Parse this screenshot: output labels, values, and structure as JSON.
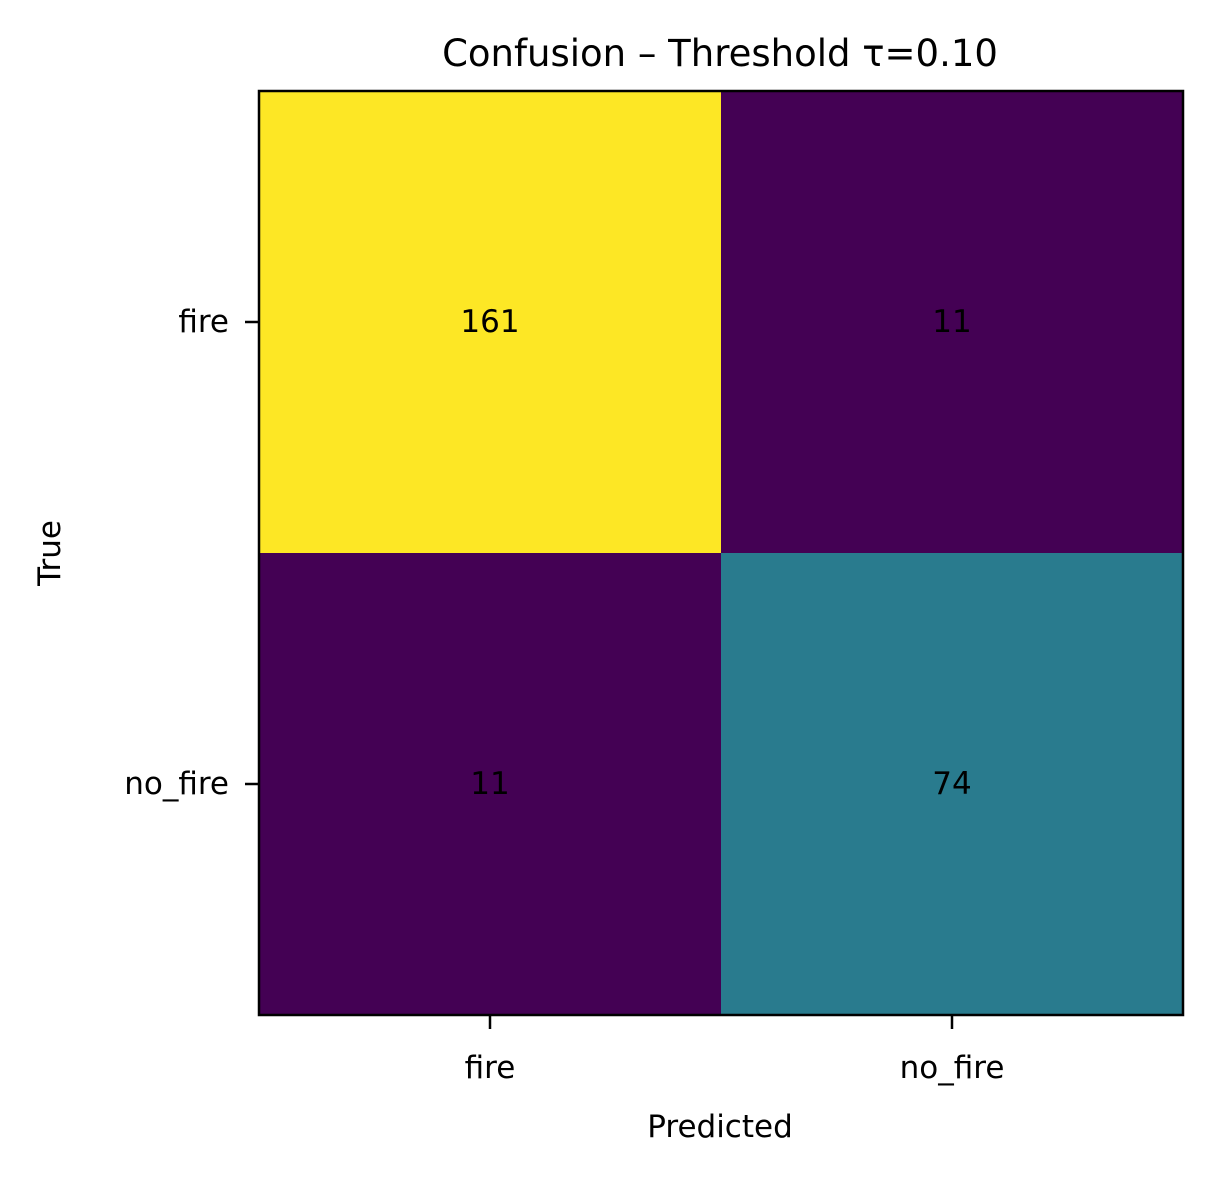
{
  "chart_data": {
    "type": "heatmap",
    "title": "Confusion – Threshold τ=0.10",
    "xlabel": "Predicted",
    "ylabel": "True",
    "x_categories": [
      "fire",
      "no_fire"
    ],
    "y_categories": [
      "fire",
      "no_fire"
    ],
    "values": [
      [
        161,
        11
      ],
      [
        11,
        74
      ]
    ],
    "colormap": "viridis",
    "colors": {
      "fire|fire": "#fde725",
      "fire|no_fire": "#440154",
      "no_fire|fire": "#440154",
      "no_fire|no_fire": "#297b8e"
    },
    "grid": false,
    "legend": "none"
  }
}
